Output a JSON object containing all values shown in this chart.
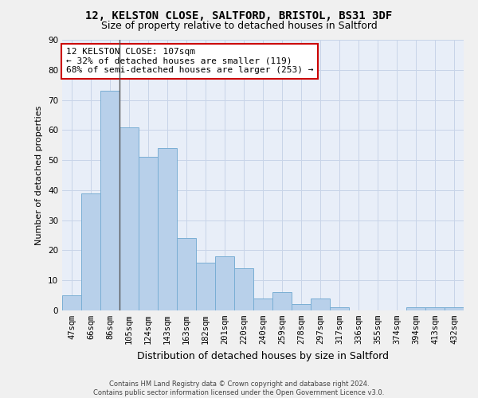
{
  "title_line1": "12, KELSTON CLOSE, SALTFORD, BRISTOL, BS31 3DF",
  "title_line2": "Size of property relative to detached houses in Saltford",
  "xlabel": "Distribution of detached houses by size in Saltford",
  "ylabel": "Number of detached properties",
  "categories": [
    "47sqm",
    "66sqm",
    "86sqm",
    "105sqm",
    "124sqm",
    "143sqm",
    "163sqm",
    "182sqm",
    "201sqm",
    "220sqm",
    "240sqm",
    "259sqm",
    "278sqm",
    "297sqm",
    "317sqm",
    "336sqm",
    "355sqm",
    "374sqm",
    "394sqm",
    "413sqm",
    "432sqm"
  ],
  "values": [
    5,
    39,
    73,
    61,
    51,
    54,
    24,
    16,
    18,
    14,
    4,
    6,
    2,
    4,
    1,
    0,
    0,
    0,
    1,
    1,
    1
  ],
  "bar_color": "#b8d0ea",
  "bar_edge_color": "#7aaed4",
  "highlight_index": 2,
  "highlight_line_color": "#555555",
  "annotation_box_text": "12 KELSTON CLOSE: 107sqm\n← 32% of detached houses are smaller (119)\n68% of semi-detached houses are larger (253) →",
  "annotation_box_color": "#ffffff",
  "annotation_box_edge_color": "#cc0000",
  "ylim": [
    0,
    90
  ],
  "yticks": [
    0,
    10,
    20,
    30,
    40,
    50,
    60,
    70,
    80,
    90
  ],
  "grid_color": "#c8d4e8",
  "bg_color": "#e8eef8",
  "fig_bg_color": "#f0f0f0",
  "footer_line1": "Contains HM Land Registry data © Crown copyright and database right 2024.",
  "footer_line2": "Contains public sector information licensed under the Open Government Licence v3.0.",
  "title_fontsize": 10,
  "subtitle_fontsize": 9,
  "xlabel_fontsize": 9,
  "ylabel_fontsize": 8,
  "tick_fontsize": 7.5,
  "annotation_fontsize": 8,
  "footer_fontsize": 6
}
